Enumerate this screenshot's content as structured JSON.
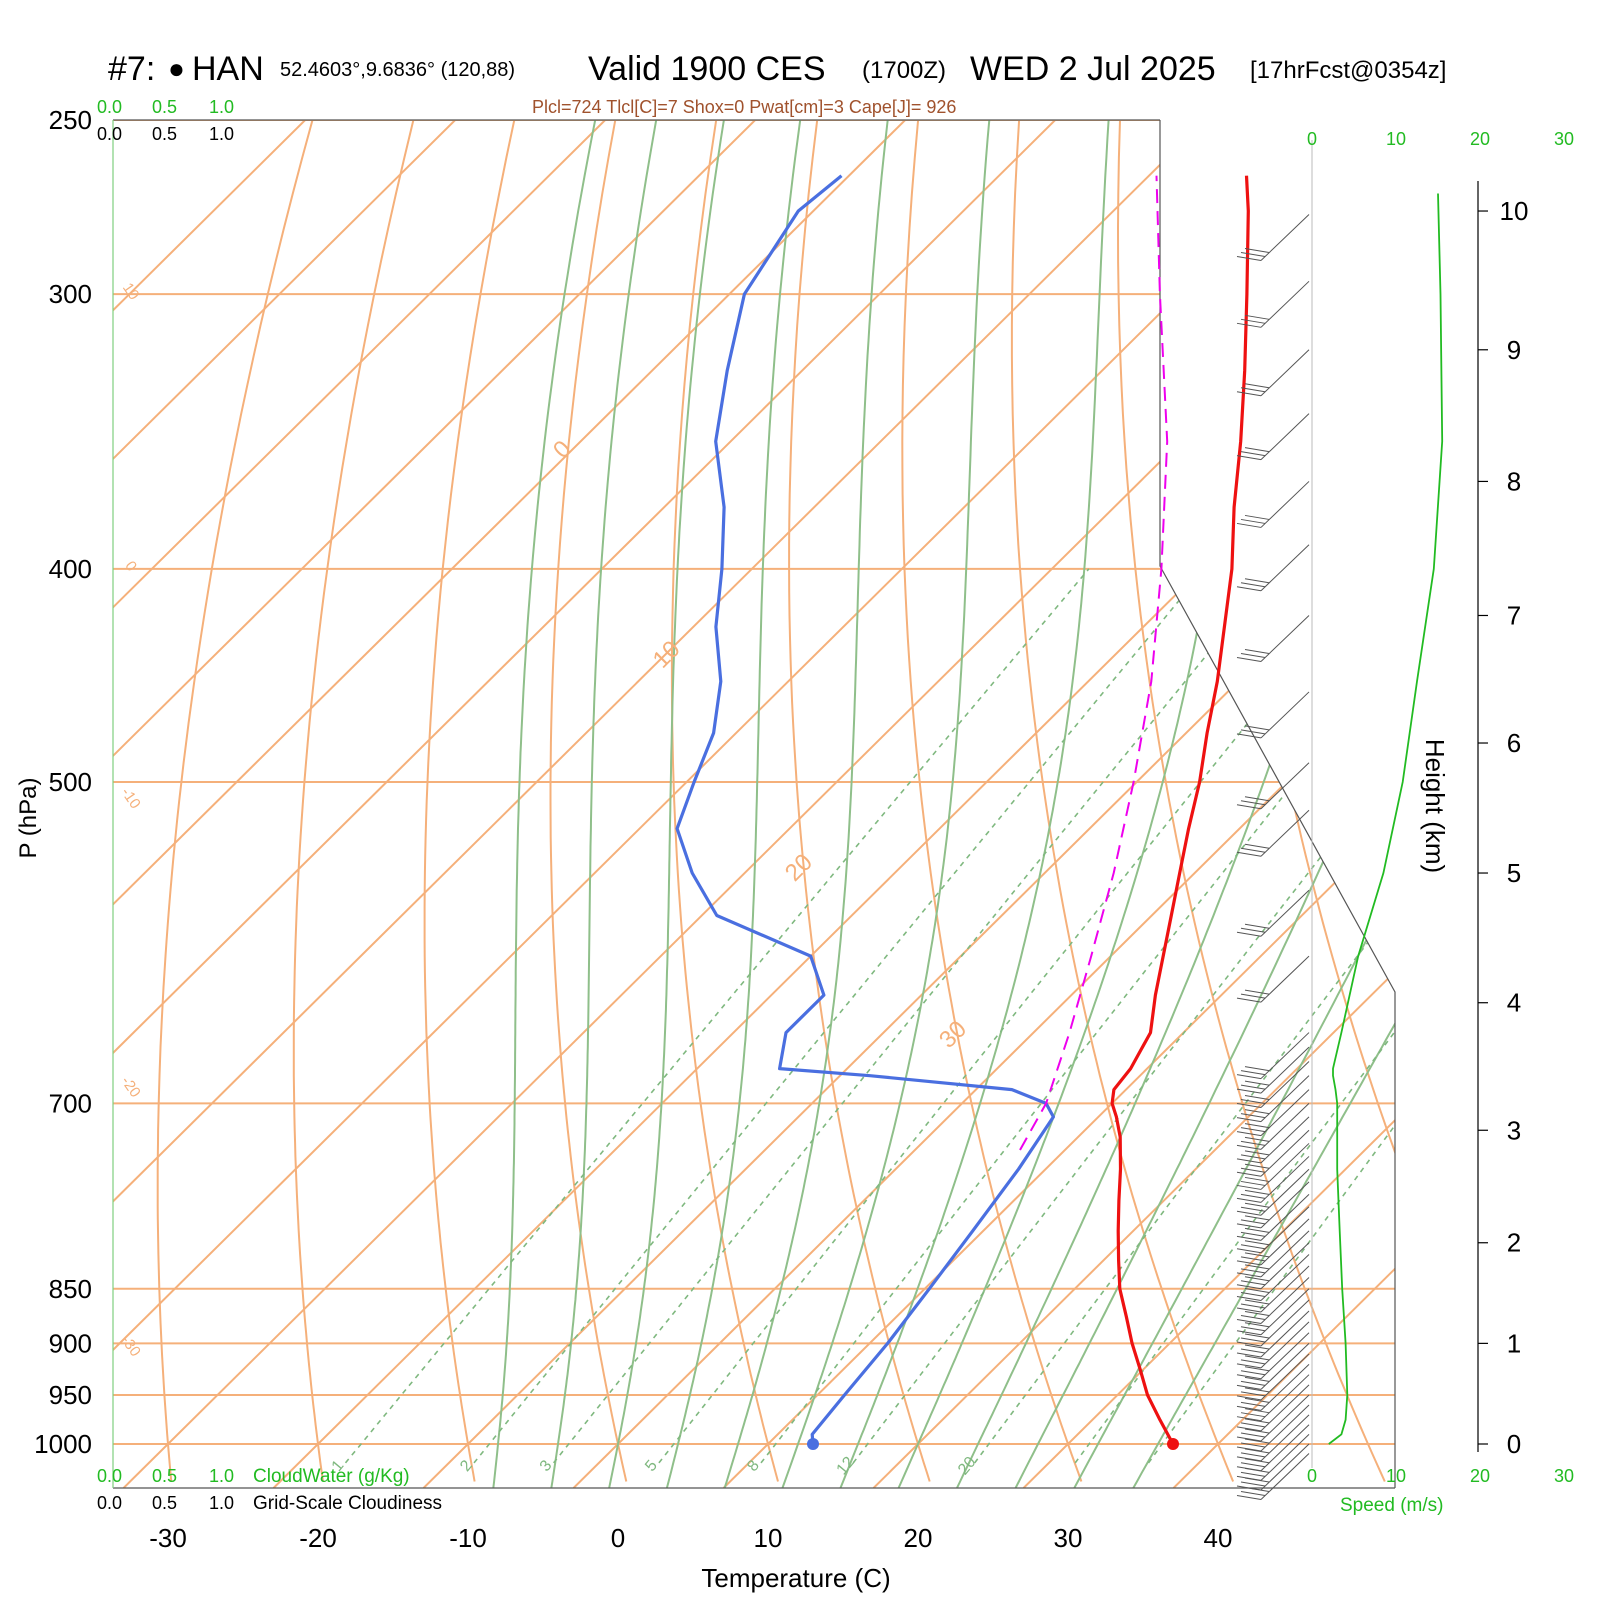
{
  "header": {
    "station_id": "#7:",
    "station_marker": "●",
    "station_name": "HAN",
    "coords": "52.4603°,9.6836° (120,88)",
    "valid_label": "Valid 1900 CES",
    "zulu": "(1700Z)",
    "date": "WED 2 Jul 2025",
    "forecast": "[17hrFcst@0354z]",
    "params": "Plcl=724 Tlcl[C]=7 Shox=0 Pwat[cm]=3 Cape[J]= 926"
  },
  "scales": {
    "cloudwater_ticks": [
      "0.0",
      "0.5",
      "1.0"
    ],
    "cloudiness_ticks": [
      "0.0",
      "0.5",
      "1.0"
    ],
    "cloudwater_label": "CloudWater (g/Kg)",
    "cloudiness_label": "Grid-Scale Cloudiness",
    "speed_ticks": [
      "0",
      "10",
      "20",
      "30"
    ],
    "speed_label": "Speed (m/s)"
  },
  "colors": {
    "isotherm": "#f5b07a",
    "dry_adiabat": "#f5b07a",
    "moist_adiabat": "#8fbf8a",
    "mixing_ratio": "#7fb87f",
    "temperature": "#ee1111",
    "dewpoint": "#4a6fe0",
    "parcel": "#ee00ee",
    "speed": "#22bb22",
    "green_text": "#22bb22",
    "param_text": "#a0522d"
  },
  "chart_data": {
    "type": "line",
    "title": "Valid 1900 CES (1700Z) WED 2 Jul 2025",
    "xlabel": "Temperature (C)",
    "ylabel": "P (hPa)",
    "y2label": "Height (km)",
    "xlim": [
      -34,
      45
    ],
    "ylim": [
      1030,
      250
    ],
    "x_ticks": [
      "-30",
      "-20",
      "-10",
      "0",
      "10",
      "20",
      "30",
      "40"
    ],
    "x_tick_values": [
      -30,
      -20,
      -10,
      0,
      10,
      20,
      30,
      40
    ],
    "p_ticks": [
      "250",
      "300",
      "400",
      "500",
      "700",
      "850",
      "900",
      "950",
      "1000"
    ],
    "p_tick_values": [
      250,
      300,
      400,
      500,
      700,
      850,
      900,
      950,
      1000
    ],
    "height_ticks": [
      "0",
      "1",
      "2",
      "3",
      "4",
      "5",
      "6",
      "7",
      "8",
      "9",
      "10"
    ],
    "height_tick_pressures": [
      1000,
      900,
      810,
      720,
      630,
      550,
      480,
      420,
      365,
      318,
      275
    ],
    "isotherm_temps": [
      -110,
      -100,
      -90,
      -80,
      -70,
      -60,
      -50,
      -40,
      -30,
      -20,
      -10,
      0,
      10,
      20,
      30,
      40
    ],
    "dry_adiabat_thetas": [
      -30,
      -20,
      -10,
      0,
      10,
      20,
      30,
      40,
      50,
      60,
      70,
      80,
      90,
      100,
      110,
      120,
      130,
      140
    ],
    "dry_adiabat_labels": [
      {
        "text": "10",
        "theta": 10,
        "p": 300
      },
      {
        "text": "0",
        "theta": 0,
        "p": 400
      },
      {
        "text": "-10",
        "theta": -10,
        "p": 510
      },
      {
        "text": "-20",
        "theta": -20,
        "p": 690
      },
      {
        "text": "-30",
        "theta": -30,
        "p": 905
      },
      {
        "text": "0",
        "theta": 0,
        "p": 355
      },
      {
        "text": "10",
        "theta": 10,
        "p": 440
      },
      {
        "text": "20",
        "theta": 20,
        "p": 550
      },
      {
        "text": "30",
        "theta": 30,
        "p": 655
      }
    ],
    "moist_adiabat_t1000": [
      -8,
      -4,
      0,
      4,
      8,
      12,
      16,
      20,
      24,
      28,
      32,
      36
    ],
    "mixing_ratios": [
      1,
      2,
      3,
      5,
      8,
      12,
      20,
      30,
      40
    ],
    "mixing_ratio_labels": [
      "1",
      "2",
      "3",
      "5",
      "8",
      "12",
      "20"
    ],
    "series": [
      {
        "name": "Temperature",
        "p": [
          1000,
          975,
          950,
          925,
          900,
          875,
          850,
          825,
          800,
          775,
          750,
          725,
          710,
          700,
          690,
          675,
          650,
          625,
          600,
          575,
          550,
          525,
          500,
          475,
          450,
          425,
          400,
          375,
          350,
          325,
          300,
          275,
          265
        ],
        "t": [
          37,
          34.5,
          32,
          29.8,
          27.5,
          25.3,
          23,
          21,
          19,
          17,
          15,
          12.8,
          11.2,
          10.0,
          9.2,
          8.9,
          7.8,
          5.6,
          3.5,
          1.3,
          -1.0,
          -3.4,
          -5.8,
          -8.6,
          -11.4,
          -14.6,
          -18.0,
          -22.0,
          -26.0,
          -30.5,
          -35.5,
          -41.0,
          -43.5
        ]
      },
      {
        "name": "Dewpoint",
        "p": [
          1000,
          990,
          950,
          900,
          850,
          800,
          750,
          710,
          700,
          690,
          680,
          675,
          650,
          625,
          600,
          575,
          550,
          525,
          500,
          475,
          450,
          425,
          400,
          375,
          350,
          325,
          300,
          275,
          265
        ],
        "t": [
          13,
          12.3,
          11.8,
          11.2,
          10.3,
          9.3,
          8.2,
          7.0,
          5.6,
          2.4,
          -8.0,
          -14.5,
          -16.5,
          -16.5,
          -20.0,
          -29.0,
          -33.5,
          -37.5,
          -39.5,
          -41.5,
          -44.5,
          -48.5,
          -52.0,
          -56.0,
          -61.0,
          -65.0,
          -69.0,
          -71.0,
          -70.5
        ]
      },
      {
        "name": "Parcel",
        "p": [
          735,
          700,
          650,
          600,
          550,
          500,
          450,
          400,
          350,
          300,
          265
        ],
        "t": [
          7.0,
          5.6,
          2.4,
          -1.3,
          -5.4,
          -10.2,
          -15.8,
          -22.7,
          -30.9,
          -41.3,
          -49.5
        ]
      }
    ],
    "wind_speed": {
      "name": "Speed (m/s)",
      "p": [
        1000,
        990,
        975,
        950,
        900,
        850,
        800,
        750,
        700,
        690,
        680,
        675,
        650,
        600,
        550,
        500,
        450,
        400,
        350,
        300,
        270
      ],
      "v": [
        2.0,
        3.5,
        4.0,
        4.2,
        4.0,
        3.6,
        3.3,
        3.0,
        3.0,
        2.8,
        2.5,
        2.5,
        3.5,
        5.5,
        8.5,
        10.8,
        12.5,
        14.5,
        15.5,
        15.3,
        15.0
      ]
    },
    "wind_barbs_p": [
      1010,
      1000,
      990,
      980,
      970,
      960,
      950,
      940,
      930,
      920,
      910,
      900,
      890,
      880,
      870,
      860,
      850,
      840,
      830,
      820,
      810,
      800,
      790,
      780,
      770,
      760,
      750,
      740,
      730,
      720,
      710,
      700,
      690,
      680,
      670,
      660,
      650,
      600,
      560,
      515,
      490,
      455,
      420,
      390,
      365,
      340,
      318,
      296,
      276
    ]
  }
}
